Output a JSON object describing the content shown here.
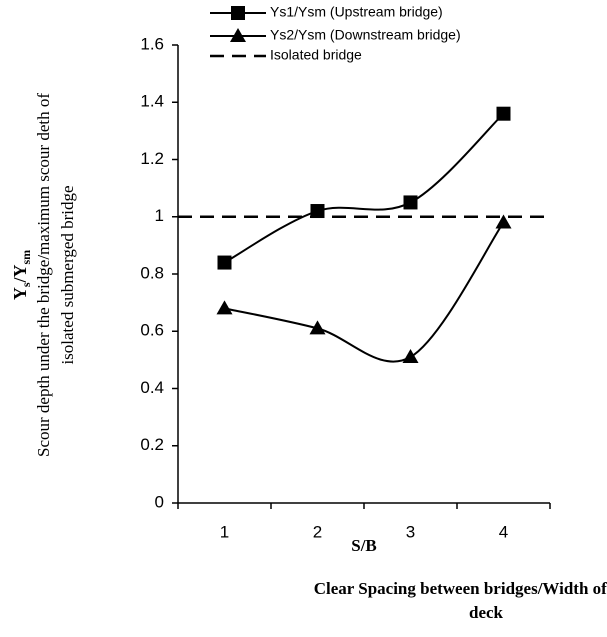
{
  "chart_data": {
    "type": "line",
    "categories": [
      "1",
      "2",
      "3",
      "4"
    ],
    "series": [
      {
        "name": "Ys1/Ysm (Upstream bridge)",
        "color": "#000000",
        "marker": "square",
        "values": [
          0.84,
          1.02,
          1.05,
          1.36
        ]
      },
      {
        "name": "Ys2/Ysm (Downstream bridge)",
        "color": "#000000",
        "marker": "triangle",
        "values": [
          0.68,
          0.61,
          0.51,
          0.98
        ]
      }
    ],
    "reference_line": {
      "name": "Isolated bridge",
      "value": 1,
      "style": "dashed"
    },
    "ylim": [
      0,
      1.6
    ],
    "yticks": [
      0,
      0.2,
      0.4,
      0.6,
      0.8,
      1,
      1.2,
      1.4,
      1.6
    ],
    "y_symbol": [
      "Y",
      "s",
      "/Y",
      "sm"
    ],
    "y_label": [
      "Scour depth under the bridge/maximum scour deth of",
      "isolated submerged bridge"
    ],
    "x_symbol": "S/B",
    "x_label": [
      "Clear Spacing between bridges/Width of bridge",
      "deck"
    ],
    "legend": "top"
  }
}
